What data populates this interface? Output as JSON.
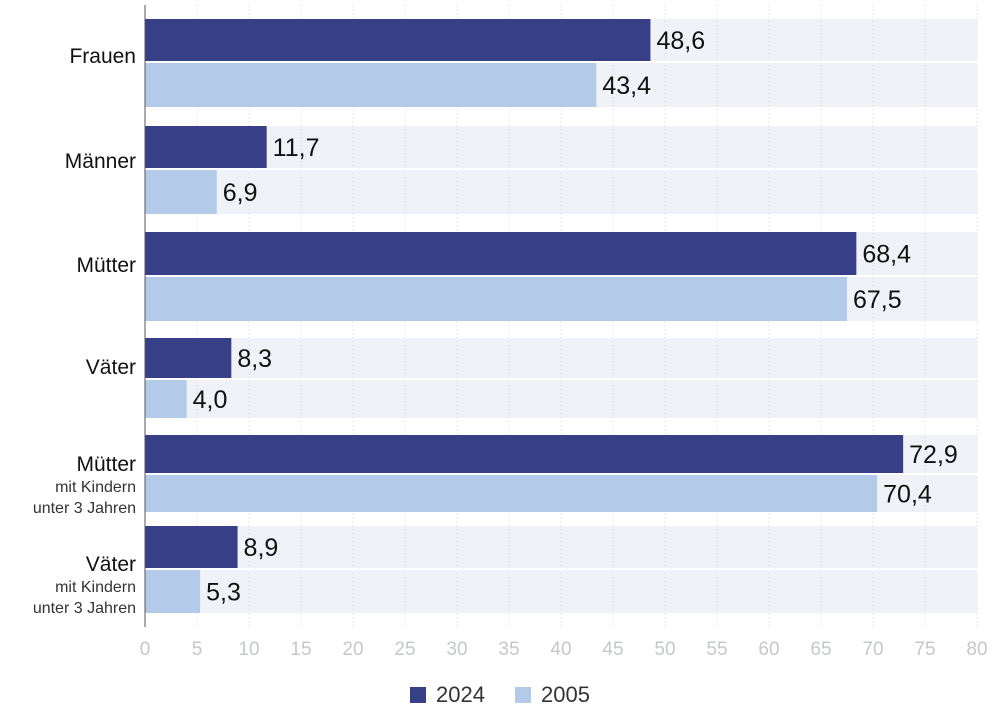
{
  "colors": {
    "series_2024": "#373f86",
    "series_2005": "#b3cbe8",
    "row_band": "#f1f2f7",
    "tick_text": "#c4c7cc",
    "value_text": "#111111"
  },
  "chart_data": {
    "type": "bar",
    "orientation": "horizontal",
    "title": "",
    "xlabel": "",
    "ylabel": "",
    "xlim": [
      0,
      80
    ],
    "ticks": [
      0,
      5,
      10,
      15,
      20,
      25,
      30,
      35,
      40,
      45,
      50,
      55,
      60,
      65,
      70,
      75,
      80
    ],
    "grid": true,
    "legend_position": "bottom-center",
    "categories": [
      {
        "main": "Frauen",
        "sub1": "",
        "sub2": ""
      },
      {
        "main": "Männer",
        "sub1": "",
        "sub2": ""
      },
      {
        "main": "Mütter",
        "sub1": "",
        "sub2": ""
      },
      {
        "main": "Väter",
        "sub1": "",
        "sub2": ""
      },
      {
        "main": "Mütter",
        "sub1": "mit Kindern",
        "sub2": "unter 3 Jahren"
      },
      {
        "main": "Väter",
        "sub1": "mit Kindern",
        "sub2": "unter 3 Jahren"
      }
    ],
    "series": [
      {
        "name": "2024",
        "values": [
          48.6,
          11.7,
          68.4,
          8.3,
          72.9,
          8.9
        ],
        "labels": [
          "48,6",
          "11,7",
          "68,4",
          "8,3",
          "72,9",
          "8,9"
        ]
      },
      {
        "name": "2005",
        "values": [
          43.4,
          6.9,
          67.5,
          4.0,
          70.4,
          5.3
        ],
        "labels": [
          "43,4",
          "6,9",
          "67,5",
          "4,0",
          "70,4",
          "5,3"
        ]
      }
    ]
  }
}
